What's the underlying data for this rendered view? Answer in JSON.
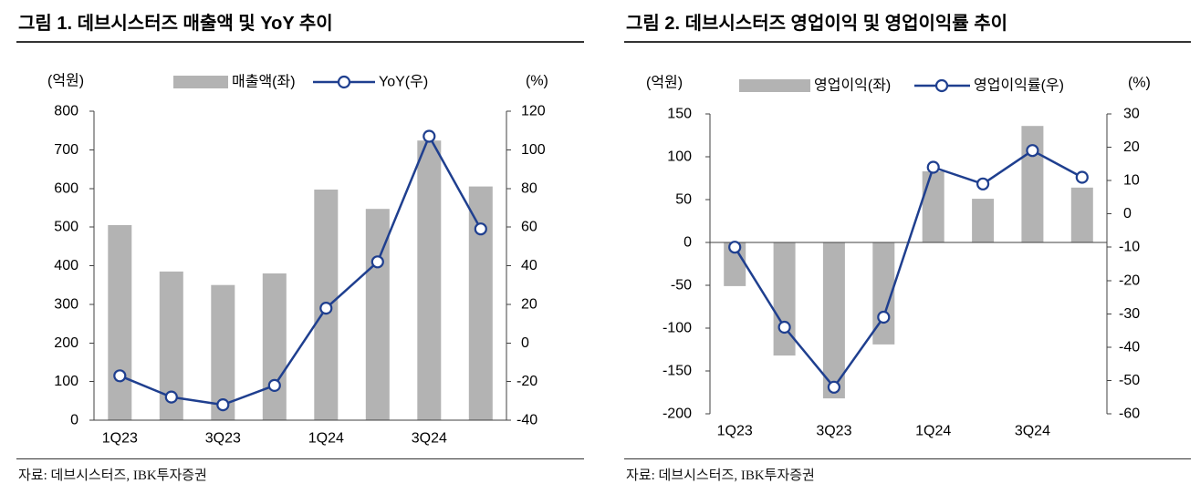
{
  "chart_data": [
    {
      "type": "bar",
      "title": "그림 1. 데브시스터즈 매출액 및 YoY 추이",
      "xlabel": "",
      "ylabel": "(억원)",
      "y2label": "(%)",
      "categories": [
        "1Q23",
        "",
        "3Q23",
        "",
        "1Q24",
        "",
        "3Q24",
        ""
      ],
      "ylim": [
        0,
        800
      ],
      "y_ticks": [
        0,
        100,
        200,
        300,
        400,
        500,
        600,
        700,
        800
      ],
      "y2lim": [
        -40,
        120
      ],
      "y2_ticks": [
        -40,
        -20,
        0,
        20,
        40,
        60,
        80,
        100,
        120
      ],
      "series": [
        {
          "name": "매출액(좌)",
          "type": "bar",
          "values": [
            505,
            385,
            350,
            380,
            597,
            547,
            724,
            605
          ]
        },
        {
          "name": "YoY(우)",
          "type": "line",
          "values": [
            -17,
            -28,
            -32,
            -22,
            18,
            42,
            107,
            59
          ]
        }
      ],
      "legend": "top-center",
      "grid": false,
      "source": "자료: 데브시스터즈, IBK투자증권"
    },
    {
      "type": "bar",
      "title": "그림 2. 데브시스터즈 영업이익 및 영업이익률 추이",
      "xlabel": "",
      "ylabel": "(억원)",
      "y2label": "(%)",
      "categories": [
        "1Q23",
        "",
        "3Q23",
        "",
        "1Q24",
        "",
        "3Q24",
        ""
      ],
      "ylim": [
        -200,
        150
      ],
      "y_ticks": [
        -200,
        -150,
        -100,
        -50,
        0,
        50,
        100,
        150
      ],
      "y2lim": [
        -60,
        30
      ],
      "y2_ticks": [
        -60,
        -50,
        -40,
        -30,
        -20,
        -10,
        0,
        10,
        20,
        30
      ],
      "series": [
        {
          "name": "영업이익(좌)",
          "type": "bar",
          "values": [
            -51,
            -132,
            -182,
            -119,
            83,
            51,
            136,
            64
          ]
        },
        {
          "name": "영업이익률(우)",
          "type": "line",
          "values": [
            -10,
            -34,
            -52,
            -31,
            14,
            9,
            19,
            11
          ]
        }
      ],
      "legend": "top-center",
      "grid": false,
      "source": "자료: 데브시스터즈, IBK투자증권"
    }
  ],
  "colors": {
    "bar": "#b3b3b3",
    "line": "#1f3f8f",
    "axis": "#404040",
    "rule": "#333333"
  }
}
